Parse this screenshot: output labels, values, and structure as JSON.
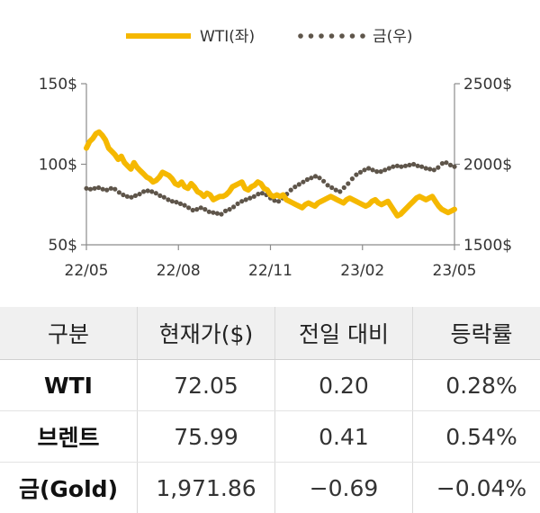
{
  "chart_data": {
    "type": "line",
    "x_ticks": [
      "22/05",
      "22/08",
      "22/11",
      "23/02",
      "23/05"
    ],
    "y_left": {
      "ticks": [
        "150$",
        "100$",
        "50$"
      ],
      "range": [
        50,
        150
      ]
    },
    "y_right": {
      "ticks": [
        "2500$",
        "2000$",
        "1500$"
      ],
      "range": [
        1500,
        2500
      ]
    },
    "legend_position": "top",
    "series": [
      {
        "name": "WTI(좌)",
        "axis": "left",
        "style": "solid",
        "color": "#f5b800",
        "values": [
          110,
          114,
          116,
          119,
          120,
          118,
          115,
          110,
          108,
          106,
          103,
          105,
          101,
          99,
          97,
          101,
          98,
          96,
          94,
          92,
          91,
          89,
          90,
          92,
          95,
          94,
          93,
          91,
          88,
          87,
          89,
          86,
          85,
          88,
          86,
          83,
          82,
          80,
          82,
          81,
          78,
          79,
          80,
          80,
          81,
          83,
          86,
          87,
          88,
          89,
          85,
          84,
          86,
          87,
          89,
          88,
          85,
          84,
          81,
          80,
          81,
          80,
          81,
          78,
          77,
          76,
          75,
          74,
          73,
          75,
          76,
          75,
          74,
          76,
          77,
          78,
          79,
          80,
          79,
          78,
          77,
          76,
          78,
          79,
          78,
          77,
          76,
          75,
          74,
          75,
          77,
          78,
          76,
          75,
          76,
          77,
          74,
          71,
          68,
          69,
          71,
          73,
          75,
          77,
          79,
          80,
          79,
          78,
          79,
          80,
          77,
          74,
          72,
          71,
          70,
          71,
          72
        ]
      },
      {
        "name": "금(우)",
        "axis": "right",
        "style": "dotted",
        "color": "#5e554a",
        "values": [
          1850,
          1845,
          1850,
          1855,
          1845,
          1840,
          1850,
          1845,
          1825,
          1810,
          1800,
          1795,
          1805,
          1815,
          1830,
          1835,
          1830,
          1820,
          1805,
          1795,
          1780,
          1770,
          1765,
          1755,
          1745,
          1730,
          1715,
          1720,
          1730,
          1720,
          1705,
          1700,
          1695,
          1690,
          1710,
          1720,
          1735,
          1755,
          1770,
          1780,
          1790,
          1800,
          1815,
          1820,
          1810,
          1790,
          1775,
          1770,
          1790,
          1815,
          1840,
          1860,
          1875,
          1890,
          1905,
          1915,
          1925,
          1915,
          1895,
          1870,
          1855,
          1840,
          1830,
          1855,
          1880,
          1910,
          1935,
          1950,
          1965,
          1975,
          1965,
          1955,
          1955,
          1965,
          1975,
          1985,
          1990,
          1985,
          1990,
          1995,
          2000,
          1990,
          1985,
          1975,
          1970,
          1965,
          1980,
          2005,
          2010,
          1995,
          1985
        ]
      }
    ]
  },
  "table": {
    "headers": [
      "구분",
      "현재가($)",
      "전일 대비",
      "등락률"
    ],
    "rows": [
      [
        "WTI",
        "72.05",
        "0.20",
        "0.28%"
      ],
      [
        "브렌트",
        "75.99",
        "0.41",
        "0.54%"
      ],
      [
        "금(Gold)",
        "1,971.86",
        "−0.69",
        "−0.04%"
      ]
    ]
  }
}
